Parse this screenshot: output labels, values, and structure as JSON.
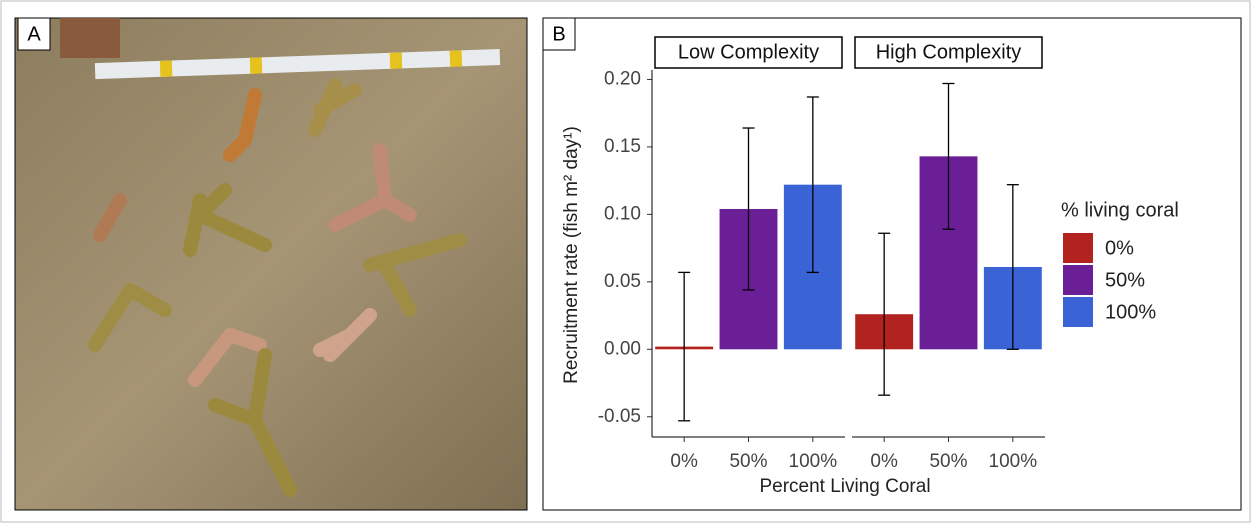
{
  "panels": {
    "photo_label": "A",
    "chart_label": "B"
  },
  "chart_data": {
    "type": "bar",
    "ylabel": "Recruitment rate (fish m² day¹)",
    "xlabel": "Percent Living Coral",
    "categories": [
      "0%",
      "50%",
      "100%"
    ],
    "colors": [
      "#b2221f",
      "#6a1f96",
      "#3a63d6"
    ],
    "facets": [
      {
        "label": "Low Complexity",
        "values": [
          0.002,
          0.104,
          0.122
        ],
        "errors": [
          0.055,
          0.06,
          0.065
        ]
      },
      {
        "label": "High Complexity",
        "values": [
          0.026,
          0.143,
          0.061
        ],
        "errors": [
          0.06,
          0.054,
          0.061
        ]
      }
    ],
    "legend_title": "% living coral",
    "ylim": [
      -0.065,
      0.207
    ],
    "yticks": [
      -0.05,
      {
        "value": 0,
        "label": "0.00"
      },
      0.05,
      {
        "value": 0.1,
        "label": "0.10"
      },
      0.15,
      {
        "value": 0.2,
        "label": "0.20"
      }
    ]
  }
}
